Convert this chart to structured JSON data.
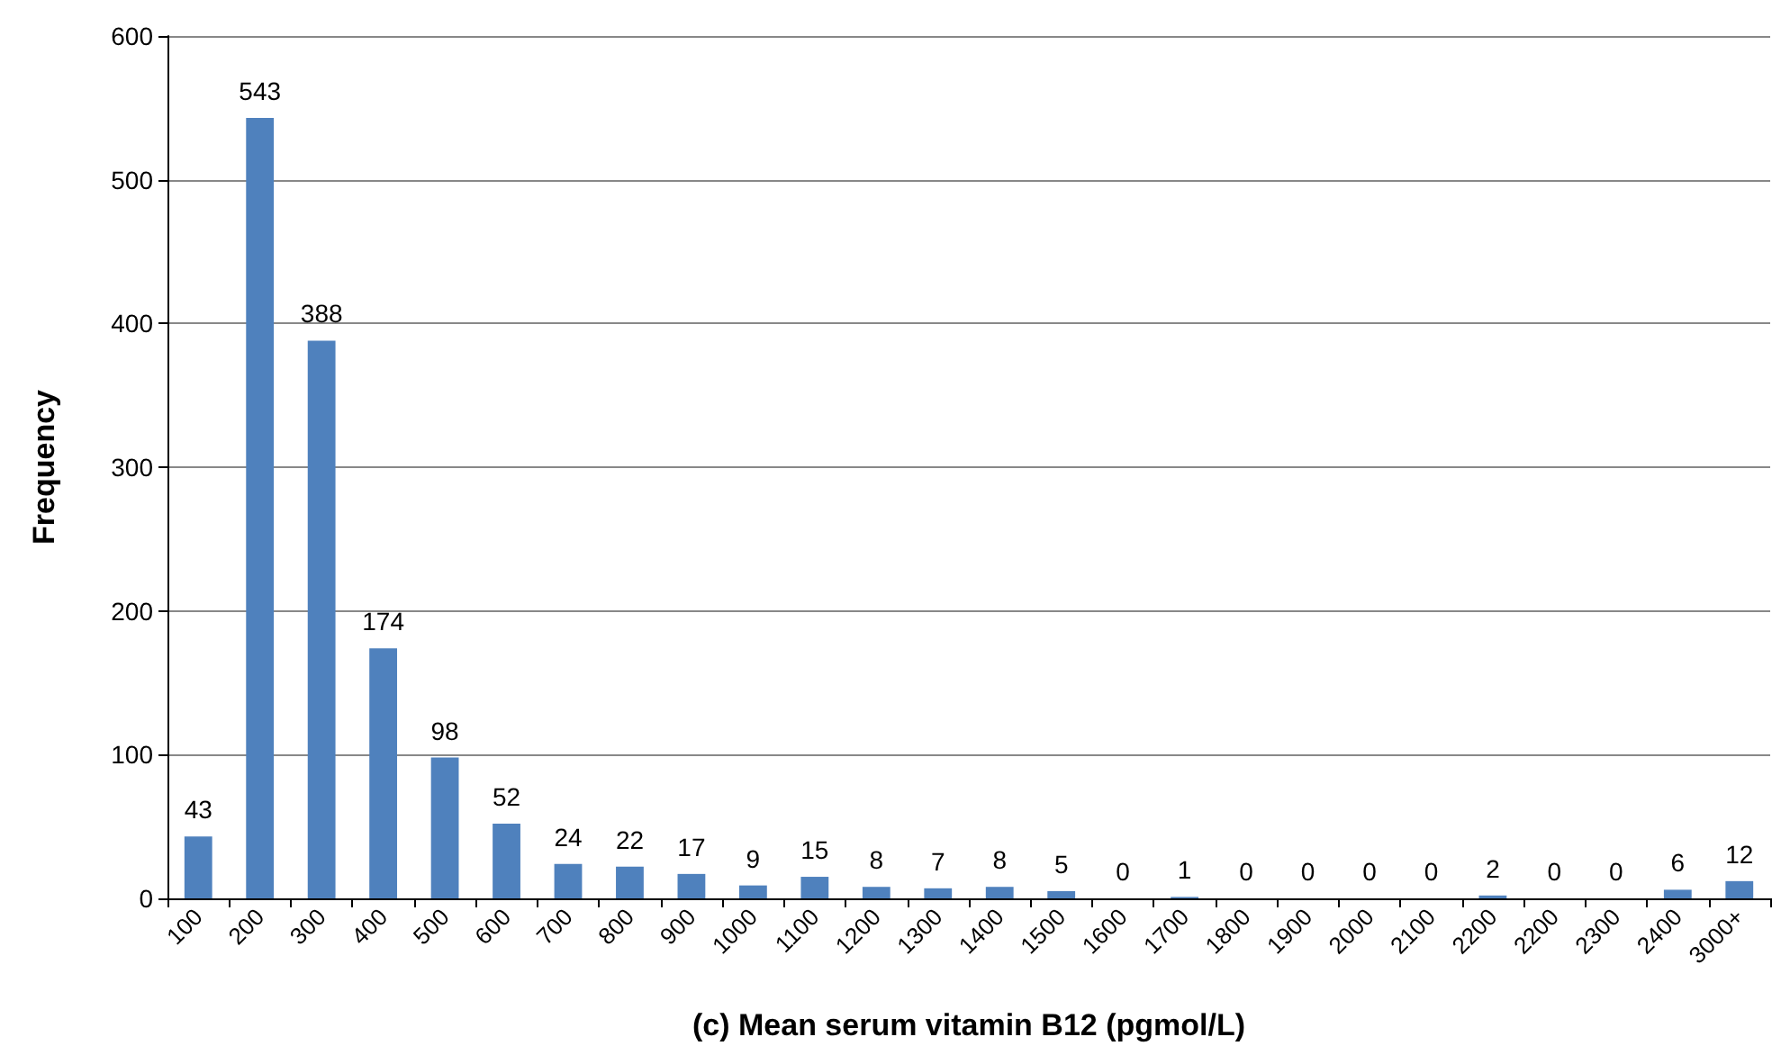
{
  "chart_data": {
    "type": "bar",
    "xlabel": "(c) Mean serum vitamin B12 (pgmol/L)",
    "ylabel": "Frequency",
    "categories": [
      "100",
      "200",
      "300",
      "400",
      "500",
      "600",
      "700",
      "800",
      "900",
      "1000",
      "1100",
      "1200",
      "1300",
      "1400",
      "1500",
      "1600",
      "1700",
      "1800",
      "1900",
      "2000",
      "2100",
      "2200",
      "2200",
      "2300",
      "2400",
      "3000+"
    ],
    "values": [
      43,
      543,
      388,
      174,
      98,
      52,
      24,
      22,
      17,
      9,
      15,
      8,
      7,
      8,
      5,
      0,
      1,
      0,
      0,
      0,
      0,
      2,
      0,
      0,
      6,
      12
    ],
    "color": "#4f81bd",
    "ylim": [
      0,
      600
    ],
    "yticks": [
      0,
      100,
      200,
      300,
      400,
      500,
      600
    ],
    "grid": "y",
    "data_labels": true
  }
}
